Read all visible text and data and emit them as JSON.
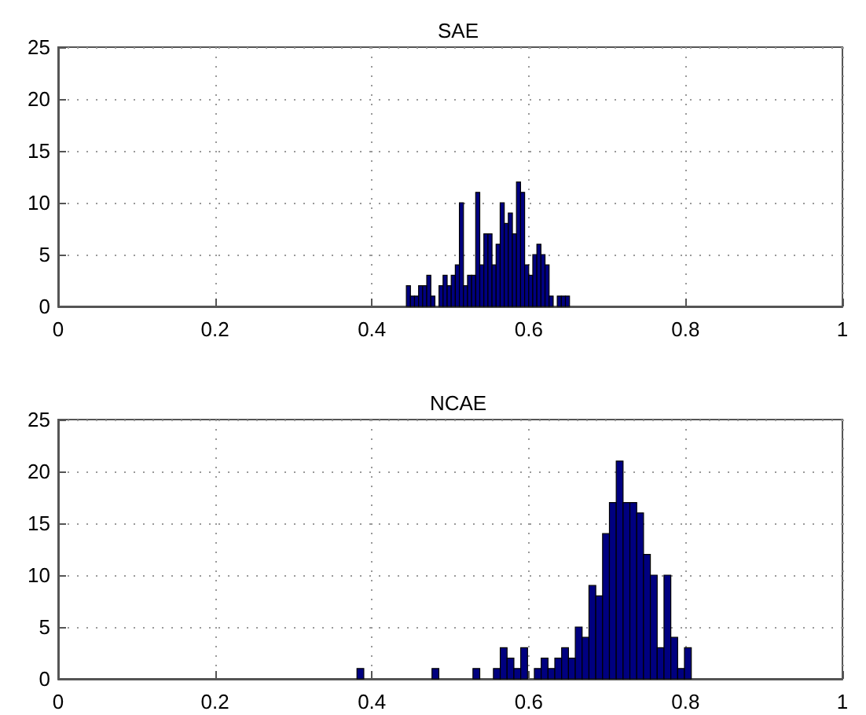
{
  "chart_data": [
    {
      "type": "histogram",
      "title": "SAE",
      "color": "#000080",
      "bins": [
        0.444,
        0.4492,
        0.4544,
        0.4596,
        0.4648,
        0.47,
        0.4752,
        0.4804,
        0.4856,
        0.4908,
        0.496,
        0.5012,
        0.5064,
        0.5116,
        0.5168,
        0.522,
        0.5272,
        0.5324,
        0.5376,
        0.5428,
        0.548,
        0.5532,
        0.5584,
        0.5636,
        0.5688,
        0.574,
        0.5792,
        0.5844,
        0.5896,
        0.5948,
        0.6,
        0.6052,
        0.6104,
        0.6156,
        0.6208,
        0.626,
        0.6312,
        0.6364,
        0.6416,
        0.6468,
        0.652
      ],
      "values": [
        2,
        1,
        1,
        2,
        2,
        3,
        1,
        0,
        2,
        3,
        2,
        3,
        4,
        10,
        2,
        3,
        3,
        11,
        4,
        7,
        7,
        4,
        6,
        10,
        8,
        9,
        7,
        12,
        11,
        4,
        3,
        5,
        6,
        5,
        4,
        1,
        0,
        1,
        1,
        1
      ],
      "xlim": [
        0,
        1
      ],
      "xticks": [
        0,
        0.2,
        0.4,
        0.6,
        0.8,
        1
      ],
      "ylim": [
        0,
        25
      ],
      "yticks": [
        0,
        5,
        10,
        15,
        20,
        25
      ],
      "grid": true
    },
    {
      "type": "histogram",
      "title": "NCAE",
      "color": "#000080",
      "bins": [
        0.381,
        0.3897,
        0.3984,
        0.4071,
        0.4158,
        0.4245,
        0.4332,
        0.4419,
        0.4506,
        0.4593,
        0.468,
        0.4767,
        0.4854,
        0.4941,
        0.5028,
        0.5115,
        0.5202,
        0.5289,
        0.5376,
        0.5463,
        0.555,
        0.5637,
        0.5724,
        0.5811,
        0.5898,
        0.5985,
        0.6072,
        0.6159,
        0.6246,
        0.6333,
        0.642,
        0.6507,
        0.6594,
        0.6681,
        0.6768,
        0.6855,
        0.6942,
        0.7029,
        0.7116,
        0.7203,
        0.729,
        0.7377,
        0.7464,
        0.7551,
        0.7638,
        0.7725,
        0.7812,
        0.7899,
        0.7986,
        0.8073
      ],
      "values": [
        1,
        0,
        0,
        0,
        0,
        0,
        0,
        0,
        0,
        0,
        0,
        1,
        0,
        0,
        0,
        0,
        0,
        1,
        0,
        0,
        1,
        3,
        2,
        1,
        3,
        0,
        1,
        2,
        1,
        2,
        3,
        2,
        5,
        4,
        9,
        8,
        14,
        17,
        21,
        17,
        17,
        16,
        12,
        10,
        3,
        10,
        4,
        1,
        3
      ],
      "xlim": [
        0,
        1
      ],
      "xticks": [
        0,
        0.2,
        0.4,
        0.6,
        0.8,
        1
      ],
      "ylim": [
        0,
        25
      ],
      "yticks": [
        0,
        5,
        10,
        15,
        20,
        25
      ],
      "grid": true
    }
  ]
}
